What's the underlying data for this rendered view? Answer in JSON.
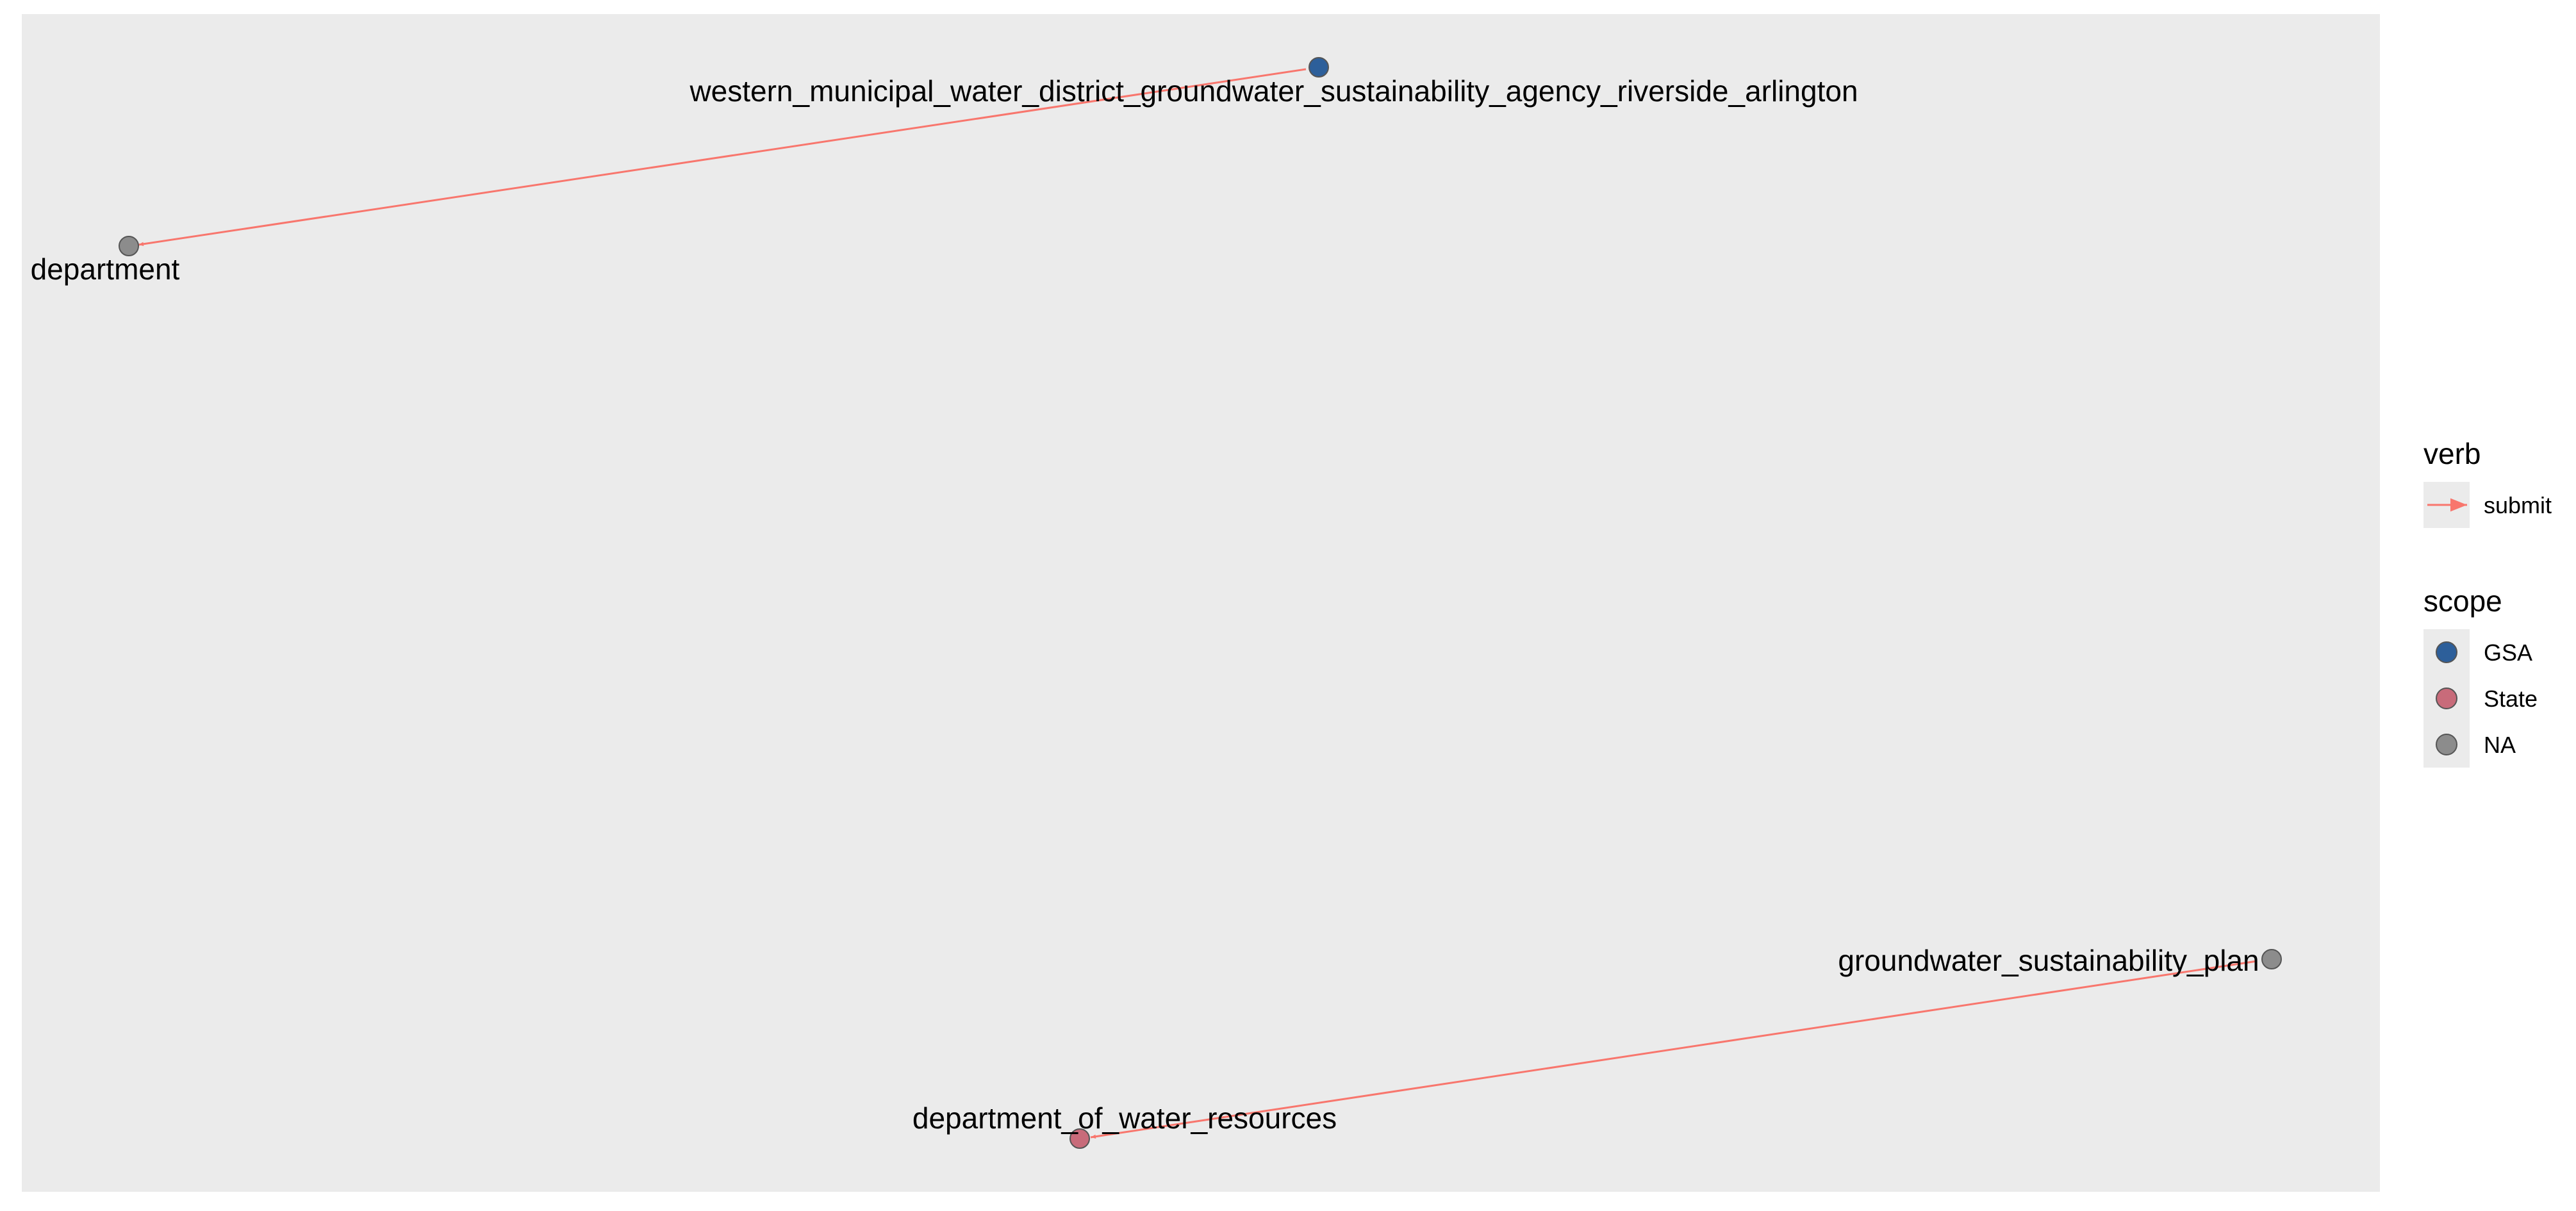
{
  "graph": {
    "nodes": [
      {
        "id": "wmwd",
        "label": "western_municipal_water_district_groundwater_sustainability_agency_riverside_arlington",
        "scope": "GSA"
      },
      {
        "id": "department",
        "label": "department",
        "scope": "NA"
      },
      {
        "id": "gsp",
        "label": "groundwater_sustainability_plan",
        "scope": "NA"
      },
      {
        "id": "dwr",
        "label": "department_of_water_resources",
        "scope": "State"
      }
    ],
    "edges": [
      {
        "from": "wmwd",
        "to": "department",
        "verb": "submit"
      },
      {
        "from": "gsp",
        "to": "dwr",
        "verb": "submit"
      }
    ]
  },
  "legend": {
    "verb": {
      "title": "verb",
      "items": [
        {
          "label": "submit",
          "color": "#F8766D"
        }
      ]
    },
    "scope": {
      "title": "scope",
      "items": [
        {
          "label": "GSA",
          "color": "#2D5F9A"
        },
        {
          "label": "State",
          "color": "#C86B7A"
        },
        {
          "label": "NA",
          "color": "#8C8C8C"
        }
      ]
    }
  },
  "colors": {
    "panel_background": "#EBEBEB",
    "edge": "#F8766D",
    "node_outline": "#555555"
  }
}
